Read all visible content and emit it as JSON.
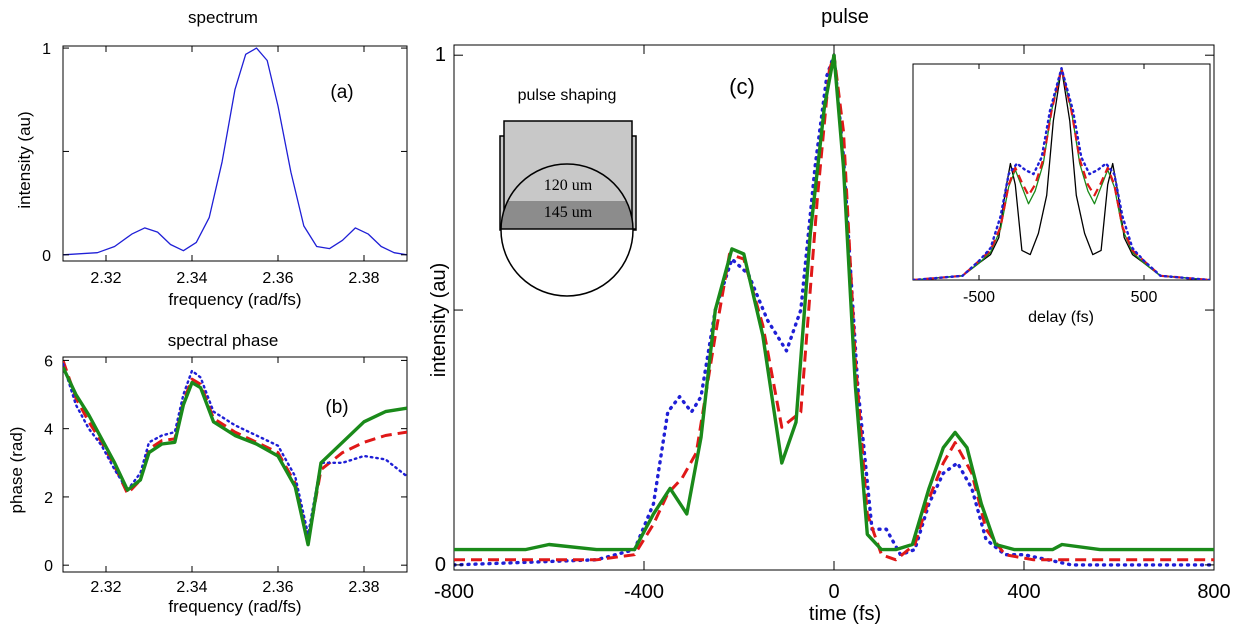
{
  "figure": {
    "shaping": {
      "title": "pulse shaping",
      "label_top": "120 um",
      "label_bottom": "145 um"
    }
  },
  "chart_data": [
    {
      "id": "a",
      "type": "line",
      "title": "spectrum",
      "panel_label": "(a)",
      "xlabel": "frequency (rad/fs)",
      "ylabel": "intensity (au)",
      "xlim": [
        2.31,
        2.39
      ],
      "ylim": [
        -0.03,
        1.01
      ],
      "xticks": [
        2.32,
        2.34,
        2.36,
        2.38
      ],
      "xtick_labels": [
        "2.32",
        "2.34",
        "2.36",
        "2.38"
      ],
      "yticks": [
        0,
        0.5,
        1
      ],
      "ytick_labels": [
        "0",
        "",
        "1"
      ],
      "grid": false,
      "series": [
        {
          "color": "#1f1fd6",
          "style": "solid",
          "x": [
            2.31,
            2.318,
            2.322,
            2.326,
            2.329,
            2.332,
            2.335,
            2.338,
            2.341,
            2.344,
            2.347,
            2.35,
            2.3525,
            2.355,
            2.3575,
            2.36,
            2.363,
            2.366,
            2.369,
            2.372,
            2.375,
            2.378,
            2.381,
            2.384,
            2.387,
            2.39
          ],
          "y": [
            0.0,
            0.01,
            0.04,
            0.1,
            0.13,
            0.11,
            0.05,
            0.02,
            0.06,
            0.18,
            0.45,
            0.8,
            0.97,
            1.0,
            0.94,
            0.72,
            0.4,
            0.14,
            0.04,
            0.03,
            0.07,
            0.13,
            0.1,
            0.04,
            0.01,
            0.0
          ]
        }
      ]
    },
    {
      "id": "b",
      "type": "line",
      "title": "spectral phase",
      "panel_label": "(b)",
      "xlabel": "frequency (rad/fs)",
      "ylabel": "phase (rad)",
      "xlim": [
        2.31,
        2.39
      ],
      "ylim": [
        -0.2,
        6.1
      ],
      "xticks": [
        2.32,
        2.34,
        2.36,
        2.38
      ],
      "xtick_labels": [
        "2.32",
        "2.34",
        "2.36",
        "2.38"
      ],
      "yticks": [
        0,
        2,
        4,
        6
      ],
      "ytick_labels": [
        "0",
        "2",
        "4",
        "6"
      ],
      "grid": false,
      "series": [
        {
          "color": "#e01818",
          "style": "dashed-thick",
          "x": [
            2.31,
            2.313,
            2.316,
            2.319,
            2.322,
            2.325,
            2.328,
            2.33,
            2.333,
            2.336,
            2.338,
            2.34,
            2.342,
            2.345,
            2.35,
            2.355,
            2.36,
            2.364,
            2.367,
            2.37,
            2.375,
            2.38,
            2.385,
            2.39
          ],
          "y": [
            6.0,
            4.9,
            4.2,
            3.6,
            2.9,
            2.1,
            2.5,
            3.4,
            3.65,
            3.7,
            4.8,
            5.45,
            5.3,
            4.3,
            3.9,
            3.6,
            3.3,
            2.4,
            0.7,
            2.8,
            3.3,
            3.6,
            3.8,
            3.9
          ]
        },
        {
          "color": "#1f1fd6",
          "style": "dotted",
          "x": [
            2.31,
            2.313,
            2.316,
            2.319,
            2.322,
            2.325,
            2.328,
            2.33,
            2.333,
            2.336,
            2.338,
            2.34,
            2.342,
            2.345,
            2.35,
            2.355,
            2.36,
            2.364,
            2.367,
            2.37,
            2.375,
            2.38,
            2.385,
            2.39
          ],
          "y": [
            5.9,
            4.7,
            4.0,
            3.5,
            2.8,
            2.2,
            2.7,
            3.6,
            3.8,
            3.9,
            5.0,
            5.7,
            5.5,
            4.5,
            4.1,
            3.8,
            3.5,
            2.6,
            0.9,
            3.0,
            3.0,
            3.2,
            3.1,
            2.6
          ]
        },
        {
          "color": "#1a8a1a",
          "style": "solid-thick",
          "x": [
            2.31,
            2.313,
            2.316,
            2.319,
            2.322,
            2.325,
            2.328,
            2.33,
            2.333,
            2.336,
            2.338,
            2.34,
            2.342,
            2.345,
            2.35,
            2.355,
            2.36,
            2.364,
            2.367,
            2.37,
            2.375,
            2.38,
            2.385,
            2.39
          ],
          "y": [
            5.8,
            5.0,
            4.4,
            3.7,
            3.0,
            2.2,
            2.5,
            3.3,
            3.55,
            3.6,
            4.7,
            5.35,
            5.2,
            4.2,
            3.8,
            3.55,
            3.2,
            2.3,
            0.6,
            3.0,
            3.6,
            4.2,
            4.5,
            4.6
          ]
        }
      ]
    },
    {
      "id": "c",
      "type": "line",
      "title": "pulse",
      "panel_label": "(c)",
      "xlabel": "time (fs)",
      "ylabel": "intensity (au)",
      "xlim": [
        -800,
        800
      ],
      "ylim": [
        -0.01,
        1.02
      ],
      "xticks": [
        -800,
        -400,
        0,
        400,
        800
      ],
      "xtick_labels": [
        "-800",
        "-400",
        "0",
        "400",
        "800"
      ],
      "yticks": [
        0,
        0.5,
        1
      ],
      "ytick_labels": [
        "0",
        "",
        "1"
      ],
      "grid": false,
      "series": [
        {
          "color": "#1f1fd6",
          "style": "dotted-thick",
          "x": [
            -800,
            -500,
            -420,
            -380,
            -350,
            -325,
            -300,
            -280,
            -250,
            -215,
            -180,
            -140,
            -100,
            -70,
            -40,
            -15,
            0,
            20,
            50,
            80,
            110,
            140,
            170,
            200,
            230,
            260,
            290,
            320,
            360,
            400,
            450,
            500,
            800
          ],
          "y": [
            0.0,
            0.01,
            0.03,
            0.12,
            0.3,
            0.33,
            0.3,
            0.33,
            0.5,
            0.6,
            0.57,
            0.48,
            0.42,
            0.5,
            0.78,
            0.96,
            1.0,
            0.8,
            0.35,
            0.07,
            0.07,
            0.02,
            0.03,
            0.12,
            0.18,
            0.2,
            0.15,
            0.05,
            0.02,
            0.02,
            0.01,
            0.0,
            0.0
          ]
        },
        {
          "color": "#e01818",
          "style": "dashed-thick",
          "x": [
            -800,
            -500,
            -420,
            -380,
            -350,
            -320,
            -290,
            -250,
            -220,
            -190,
            -150,
            -110,
            -70,
            -35,
            -10,
            0,
            20,
            45,
            70,
            100,
            130,
            170,
            200,
            230,
            255,
            290,
            320,
            360,
            420,
            800
          ],
          "y": [
            0.01,
            0.01,
            0.02,
            0.08,
            0.14,
            0.17,
            0.22,
            0.45,
            0.61,
            0.6,
            0.47,
            0.27,
            0.3,
            0.72,
            0.97,
            1.0,
            0.85,
            0.4,
            0.1,
            0.02,
            0.01,
            0.04,
            0.13,
            0.2,
            0.24,
            0.18,
            0.07,
            0.02,
            0.01,
            0.01
          ]
        },
        {
          "color": "#1a8a1a",
          "style": "solid-thick",
          "x": [
            -800,
            -650,
            -600,
            -500,
            -420,
            -380,
            -345,
            -310,
            -280,
            -250,
            -215,
            -190,
            -150,
            -110,
            -80,
            -50,
            -20,
            0,
            20,
            45,
            70,
            100,
            130,
            165,
            200,
            230,
            255,
            280,
            310,
            340,
            380,
            420,
            460,
            480,
            560,
            800
          ],
          "y": [
            0.03,
            0.03,
            0.04,
            0.03,
            0.03,
            0.1,
            0.15,
            0.1,
            0.25,
            0.5,
            0.62,
            0.61,
            0.45,
            0.2,
            0.28,
            0.65,
            0.9,
            1.0,
            0.78,
            0.35,
            0.06,
            0.03,
            0.03,
            0.04,
            0.15,
            0.23,
            0.26,
            0.23,
            0.12,
            0.04,
            0.03,
            0.03,
            0.03,
            0.04,
            0.03,
            0.03
          ]
        }
      ]
    },
    {
      "id": "c-inset",
      "type": "line",
      "title": "",
      "xlabel": "delay (fs)",
      "ylabel": "",
      "xlim": [
        -900,
        900
      ],
      "ylim": [
        0,
        1.02
      ],
      "xticks": [
        -500,
        500
      ],
      "xtick_labels": [
        "-500",
        "500"
      ],
      "grid": false,
      "series": [
        {
          "color": "#000000",
          "style": "solid",
          "x": [
            -900,
            -600,
            -500,
            -430,
            -380,
            -340,
            -310,
            -280,
            -240,
            -190,
            -140,
            -90,
            -50,
            0,
            50,
            90,
            140,
            190,
            240,
            280,
            310,
            340,
            380,
            430,
            500,
            600,
            900
          ],
          "y": [
            0.0,
            0.02,
            0.08,
            0.12,
            0.2,
            0.42,
            0.55,
            0.45,
            0.14,
            0.12,
            0.22,
            0.4,
            0.75,
            1.0,
            0.75,
            0.4,
            0.22,
            0.12,
            0.14,
            0.45,
            0.55,
            0.42,
            0.2,
            0.12,
            0.08,
            0.02,
            0.0
          ]
        },
        {
          "color": "#1a8a1a",
          "style": "solid",
          "x": [
            -900,
            -600,
            -500,
            -430,
            -370,
            -320,
            -280,
            -240,
            -200,
            -160,
            -110,
            -60,
            0,
            60,
            110,
            160,
            200,
            240,
            280,
            320,
            370,
            430,
            500,
            600,
            900
          ],
          "y": [
            0.0,
            0.02,
            0.08,
            0.13,
            0.24,
            0.44,
            0.52,
            0.44,
            0.36,
            0.42,
            0.55,
            0.8,
            1.0,
            0.8,
            0.55,
            0.42,
            0.36,
            0.44,
            0.52,
            0.44,
            0.24,
            0.13,
            0.08,
            0.02,
            0.0
          ]
        },
        {
          "color": "#e01818",
          "style": "dashed",
          "x": [
            -900,
            -600,
            -500,
            -430,
            -370,
            -320,
            -280,
            -240,
            -200,
            -160,
            -110,
            -60,
            0,
            60,
            110,
            160,
            200,
            240,
            280,
            320,
            370,
            430,
            500,
            600,
            900
          ],
          "y": [
            0.0,
            0.02,
            0.09,
            0.14,
            0.25,
            0.45,
            0.53,
            0.46,
            0.4,
            0.45,
            0.57,
            0.8,
            1.0,
            0.8,
            0.57,
            0.45,
            0.4,
            0.46,
            0.53,
            0.45,
            0.25,
            0.14,
            0.09,
            0.02,
            0.0
          ]
        },
        {
          "color": "#1f1fd6",
          "style": "dotted",
          "x": [
            -900,
            -600,
            -500,
            -430,
            -370,
            -320,
            -270,
            -220,
            -170,
            -120,
            -70,
            0,
            70,
            120,
            170,
            220,
            270,
            320,
            370,
            430,
            500,
            600,
            900
          ],
          "y": [
            0.0,
            0.02,
            0.09,
            0.15,
            0.3,
            0.5,
            0.55,
            0.52,
            0.5,
            0.58,
            0.8,
            1.0,
            0.8,
            0.58,
            0.5,
            0.52,
            0.55,
            0.5,
            0.3,
            0.15,
            0.09,
            0.02,
            0.0
          ]
        }
      ]
    }
  ]
}
